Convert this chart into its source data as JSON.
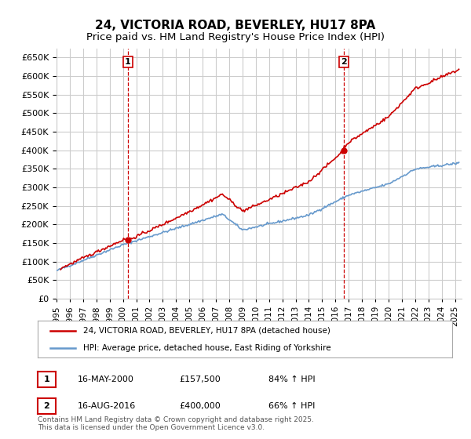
{
  "title1": "24, VICTORIA ROAD, BEVERLEY, HU17 8PA",
  "title2": "Price paid vs. HM Land Registry's House Price Index (HPI)",
  "ylabel": "",
  "ylim": [
    0,
    675000
  ],
  "yticks": [
    0,
    50000,
    100000,
    150000,
    200000,
    250000,
    300000,
    350000,
    400000,
    450000,
    500000,
    550000,
    600000,
    650000
  ],
  "xlim_start": 1995.0,
  "xlim_end": 2025.5,
  "sale1_x": 2000.37,
  "sale1_y": 157500,
  "sale2_x": 2016.62,
  "sale2_y": 400000,
  "sale1_label": "1",
  "sale2_label": "2",
  "red_color": "#cc0000",
  "blue_color": "#6699cc",
  "grid_color": "#cccccc",
  "background_color": "#ffffff",
  "legend_line1": "24, VICTORIA ROAD, BEVERLEY, HU17 8PA (detached house)",
  "legend_line2": "HPI: Average price, detached house, East Riding of Yorkshire",
  "table_row1": [
    "1",
    "16-MAY-2000",
    "£157,500",
    "84% ↑ HPI"
  ],
  "table_row2": [
    "2",
    "16-AUG-2016",
    "£400,000",
    "66% ↑ HPI"
  ],
  "footnote": "Contains HM Land Registry data © Crown copyright and database right 2025.\nThis data is licensed under the Open Government Licence v3.0.",
  "title_fontsize": 11,
  "subtitle_fontsize": 9.5
}
